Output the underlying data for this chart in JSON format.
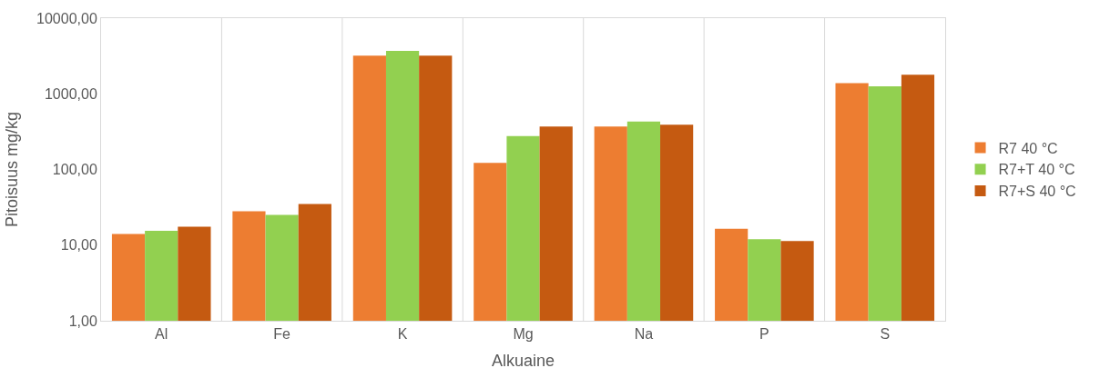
{
  "chart_data": {
    "type": "bar",
    "xlabel": "Alkuaine",
    "ylabel": "Pitoisuus mg/kg",
    "categories": [
      "Al",
      "Fe",
      "K",
      "Mg",
      "Na",
      "P",
      "S"
    ],
    "series": [
      {
        "name": "R7 40 °C",
        "color": "#ed7d31",
        "values": [
          14,
          28,
          3200,
          122,
          370,
          16.5,
          1380
        ]
      },
      {
        "name": "R7+T 40 °C",
        "color": "#92d050",
        "values": [
          15.5,
          25,
          3700,
          277,
          430,
          12,
          1260
        ]
      },
      {
        "name": "R7+S 40 °C",
        "color": "#c55a11",
        "values": [
          17.5,
          35,
          3200,
          370,
          390,
          11.3,
          1790
        ]
      }
    ],
    "log": "y",
    "ylim": [
      1,
      10000
    ],
    "yticks": [
      {
        "value": 1,
        "label": "1,00"
      },
      {
        "value": 10,
        "label": "10,00"
      },
      {
        "value": 100,
        "label": "100,00"
      },
      {
        "value": 1000,
        "label": "1000,00"
      },
      {
        "value": 10000,
        "label": "10000,00"
      }
    ],
    "grid": "x",
    "legend": "right"
  }
}
